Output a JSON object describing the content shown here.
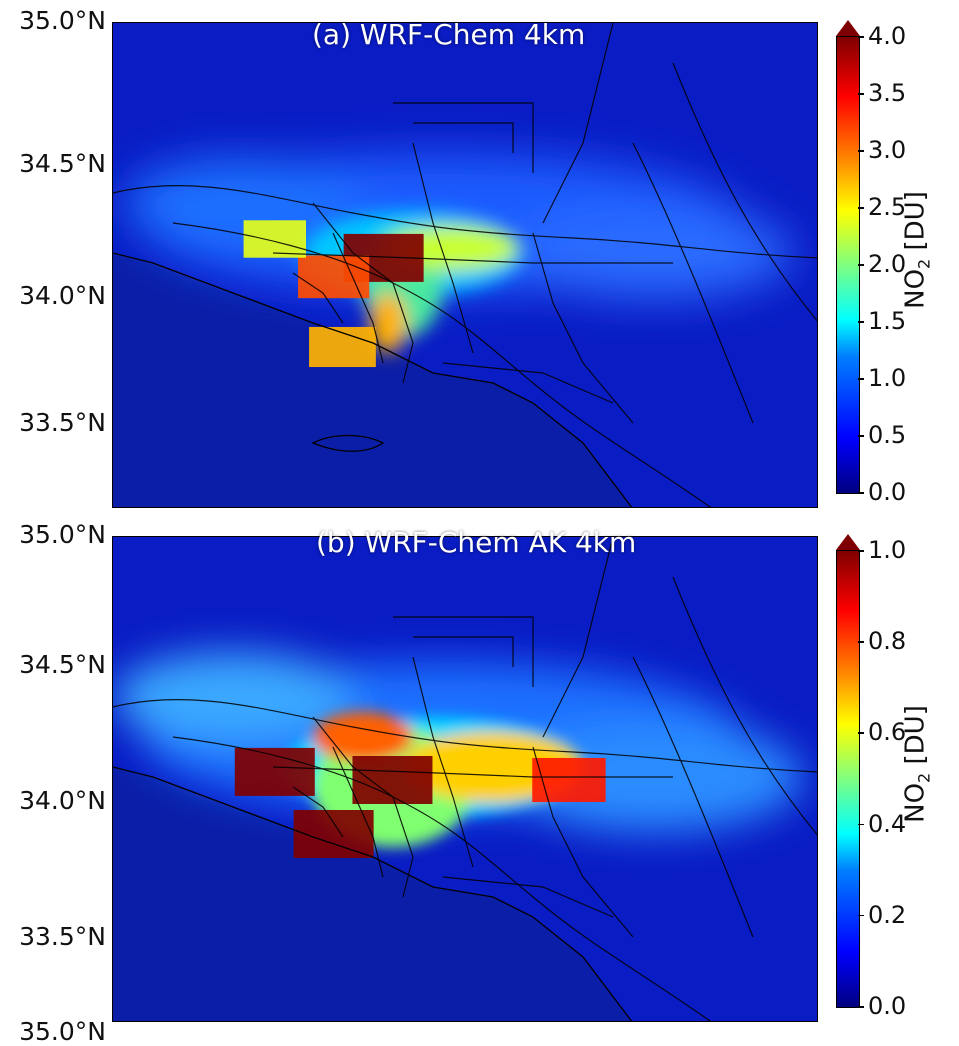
{
  "figure": {
    "lat_labels": [
      "35.0°N",
      "34.5°N",
      "34.0°N",
      "33.5°N"
    ],
    "truncated_label": "35.0°N",
    "panels": [
      {
        "id": "a",
        "title": "(a) WRF-Chem 4km",
        "colorbar": {
          "ticks": [
            "0.0",
            "0.5",
            "1.0",
            "1.5",
            "2.0",
            "2.5",
            "3.0",
            "3.5",
            "4.0"
          ],
          "label_prefix": "NO",
          "label_sub": "2",
          "label_suffix": " [DU]",
          "vmin": 0.0,
          "vmax": 4.0,
          "extend": "max",
          "colormap": "jet"
        },
        "hotspots": [
          {
            "lat": 34.13,
            "lon": -118.08,
            "value": 4.0
          },
          {
            "lat": 34.06,
            "lon": -118.25,
            "value": 3.2
          },
          {
            "lat": 33.8,
            "lon": -118.22,
            "value": 2.8
          },
          {
            "lat": 34.2,
            "lon": -118.45,
            "value": 2.4
          }
        ]
      },
      {
        "id": "b",
        "title": "(b) WRF-Chem AK 4km",
        "colorbar": {
          "ticks": [
            "0.0",
            "0.2",
            "0.4",
            "0.6",
            "0.8",
            "1.0"
          ],
          "label_prefix": "NO",
          "label_sub": "2",
          "label_suffix": " [DU]",
          "vmin": 0.0,
          "vmax": 1.0,
          "extend": "max",
          "colormap": "jet"
        },
        "hotspots": [
          {
            "lat": 34.13,
            "lon": -118.45,
            "value": 1.0
          },
          {
            "lat": 34.1,
            "lon": -118.05,
            "value": 1.0
          },
          {
            "lat": 33.9,
            "lon": -118.25,
            "value": 1.0
          },
          {
            "lat": 34.1,
            "lon": -117.45,
            "value": 0.85
          }
        ]
      }
    ],
    "colors": {
      "background": "#0b1ea8",
      "roads": "#000000",
      "text_title": "#ffffff"
    }
  }
}
